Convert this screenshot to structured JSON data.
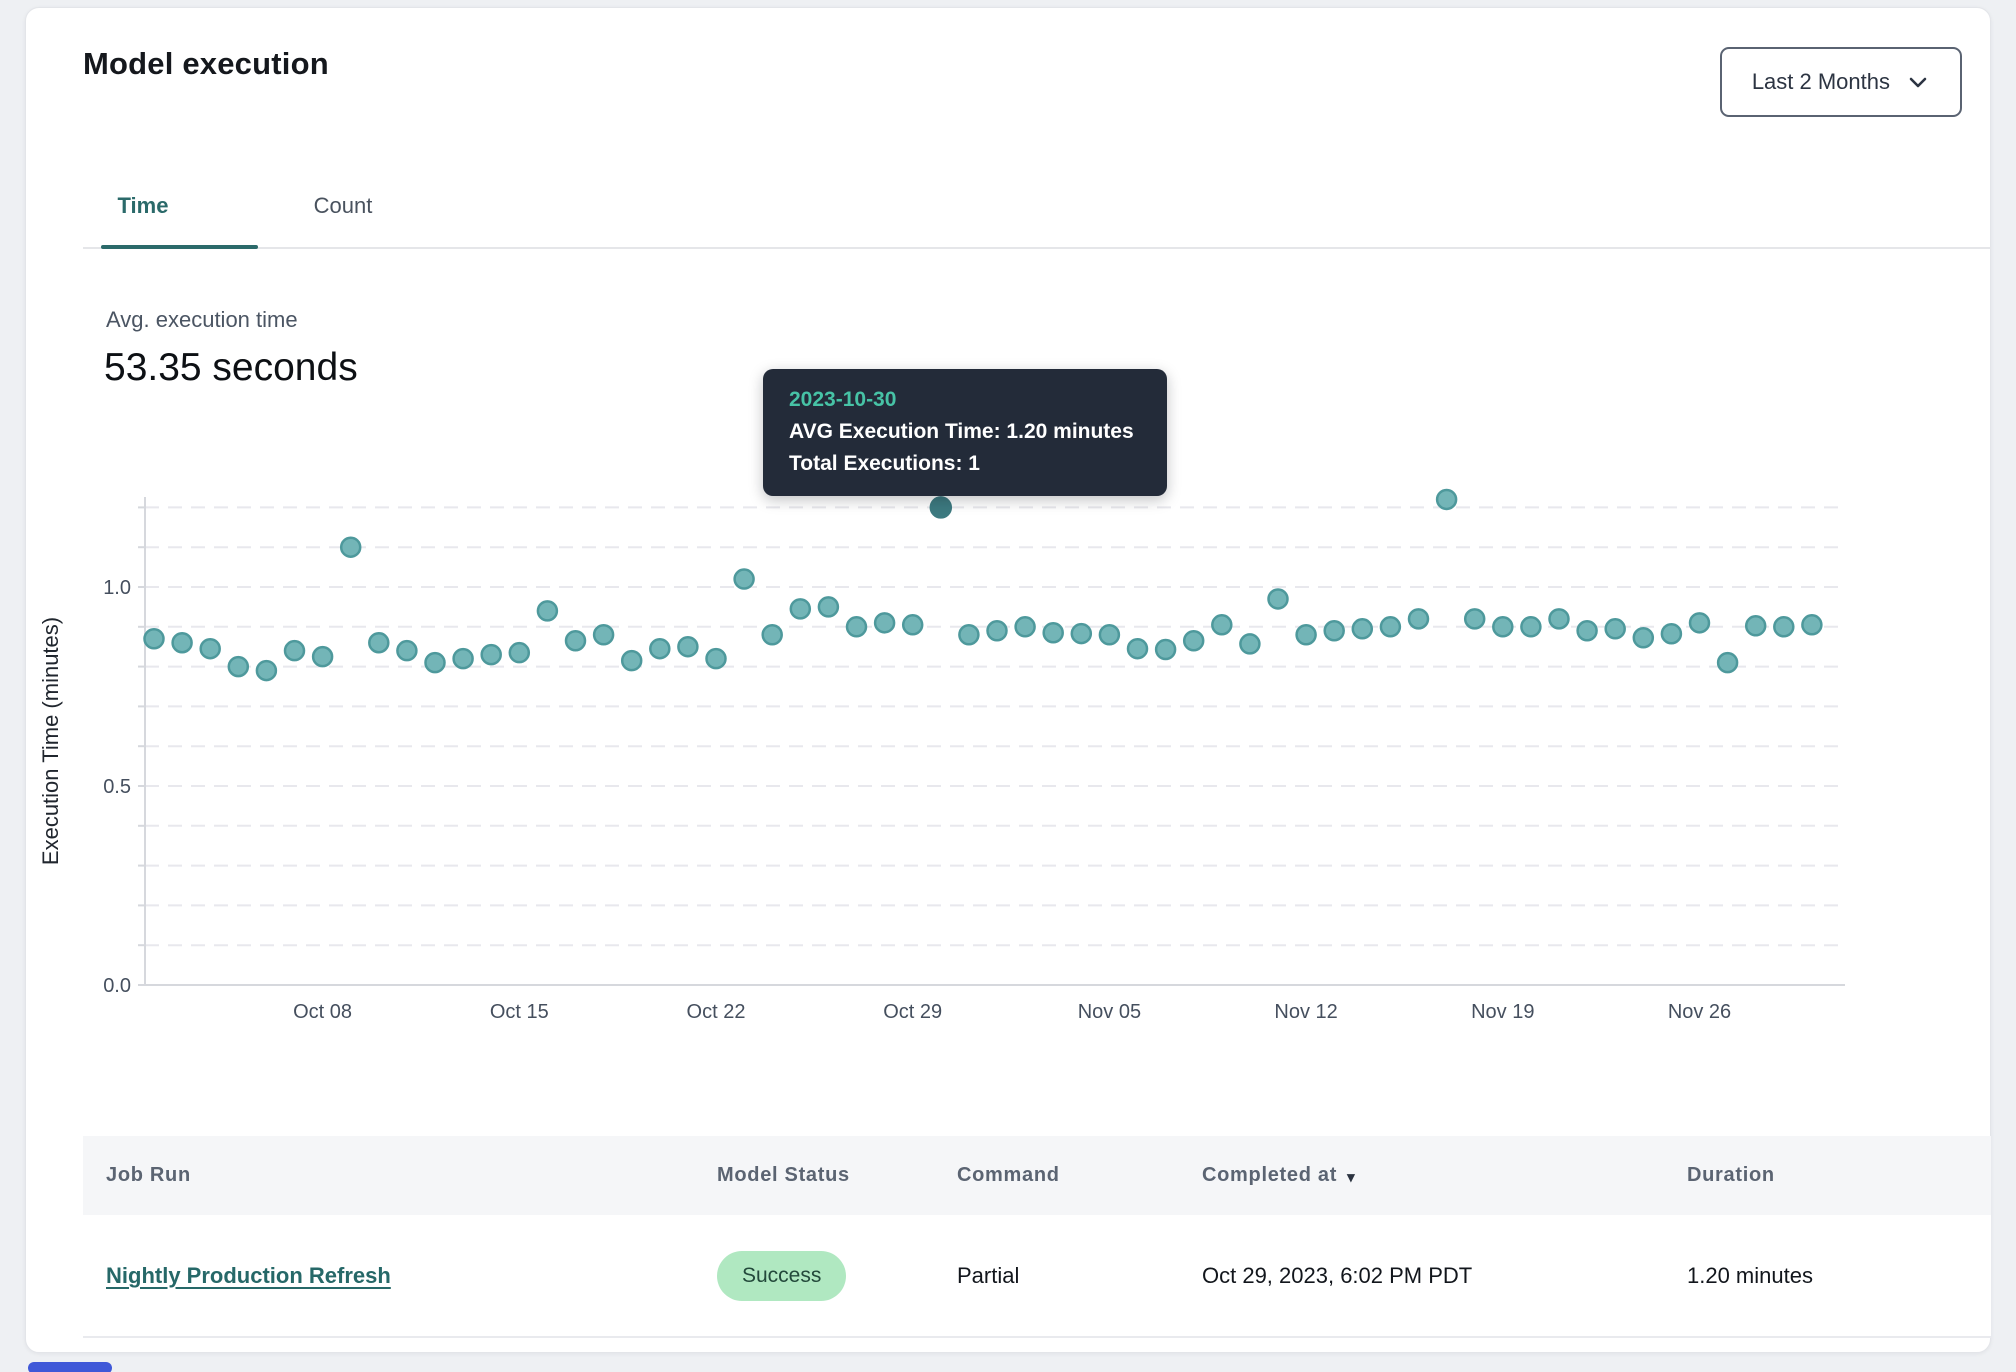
{
  "page": {
    "title": "Model execution"
  },
  "filter": {
    "label": "Last 2 Months"
  },
  "tabs": [
    {
      "label": "Time",
      "active": true
    },
    {
      "label": "Count",
      "active": false
    }
  ],
  "summary": {
    "label": "Avg. execution time",
    "value": "53.35 seconds"
  },
  "tooltip": {
    "date": "2023-10-30",
    "avg_line": "AVG Execution Time: 1.20 minutes",
    "total_line": "Total Executions: 1"
  },
  "chart_data": {
    "type": "scatter",
    "title": "",
    "xlabel": "",
    "ylabel": "Execution Time (minutes)",
    "ylim": [
      0,
      1.25
    ],
    "yticks": [
      0.0,
      0.5,
      1.0
    ],
    "grid": "horizontal-dashed-every-0.1",
    "legend": "none",
    "xticks": [
      {
        "label": "Oct 08",
        "index": 6
      },
      {
        "label": "Oct 15",
        "index": 13
      },
      {
        "label": "Oct 22",
        "index": 20
      },
      {
        "label": "Oct 29",
        "index": 27
      },
      {
        "label": "Nov 05",
        "index": 34
      },
      {
        "label": "Nov 12",
        "index": 41
      },
      {
        "label": "Nov 19",
        "index": 48
      },
      {
        "label": "Nov 26",
        "index": 55
      }
    ],
    "highlight": {
      "date": "2023-10-30",
      "value": 1.2,
      "total_executions": 1
    },
    "series": [
      {
        "name": "AVG Execution Time (minutes)",
        "points": [
          [
            "2023-10-02",
            0.87
          ],
          [
            "2023-10-03",
            0.86
          ],
          [
            "2023-10-04",
            0.845
          ],
          [
            "2023-10-05",
            0.8
          ],
          [
            "2023-10-06",
            0.79
          ],
          [
            "2023-10-07",
            0.84
          ],
          [
            "2023-10-08",
            0.825
          ],
          [
            "2023-10-09",
            1.1
          ],
          [
            "2023-10-10",
            0.86
          ],
          [
            "2023-10-11",
            0.84
          ],
          [
            "2023-10-12",
            0.81
          ],
          [
            "2023-10-13",
            0.82
          ],
          [
            "2023-10-14",
            0.83
          ],
          [
            "2023-10-15",
            0.835
          ],
          [
            "2023-10-16",
            0.94
          ],
          [
            "2023-10-17",
            0.865
          ],
          [
            "2023-10-18",
            0.88
          ],
          [
            "2023-10-19",
            0.815
          ],
          [
            "2023-10-20",
            0.845
          ],
          [
            "2023-10-21",
            0.85
          ],
          [
            "2023-10-22",
            0.82
          ],
          [
            "2023-10-23",
            1.02
          ],
          [
            "2023-10-24",
            0.88
          ],
          [
            "2023-10-25",
            0.945
          ],
          [
            "2023-10-26",
            0.95
          ],
          [
            "2023-10-27",
            0.9
          ],
          [
            "2023-10-28",
            0.91
          ],
          [
            "2023-10-29",
            0.905
          ],
          [
            "2023-10-30",
            1.2
          ],
          [
            "2023-10-31",
            0.88
          ],
          [
            "2023-11-01",
            0.89
          ],
          [
            "2023-11-02",
            0.9
          ],
          [
            "2023-11-03",
            0.885
          ],
          [
            "2023-11-04",
            0.883
          ],
          [
            "2023-11-05",
            0.88
          ],
          [
            "2023-11-06",
            0.845
          ],
          [
            "2023-11-07",
            0.843
          ],
          [
            "2023-11-08",
            0.865
          ],
          [
            "2023-11-09",
            0.905
          ],
          [
            "2023-11-10",
            0.857
          ],
          [
            "2023-11-11",
            0.97
          ],
          [
            "2023-11-12",
            0.88
          ],
          [
            "2023-11-13",
            0.89
          ],
          [
            "2023-11-14",
            0.895
          ],
          [
            "2023-11-15",
            0.9
          ],
          [
            "2023-11-16",
            0.92
          ],
          [
            "2023-11-17",
            1.22
          ],
          [
            "2023-11-18",
            0.92
          ],
          [
            "2023-11-19",
            0.9
          ],
          [
            "2023-11-20",
            0.9
          ],
          [
            "2023-11-21",
            0.92
          ],
          [
            "2023-11-22",
            0.89
          ],
          [
            "2023-11-23",
            0.895
          ],
          [
            "2023-11-24",
            0.8725
          ],
          [
            "2023-11-25",
            0.8825
          ],
          [
            "2023-11-26",
            0.91
          ],
          [
            "2023-11-27",
            0.81
          ],
          [
            "2023-11-28",
            0.9025
          ],
          [
            "2023-11-29",
            0.9
          ],
          [
            "2023-11-30",
            0.905
          ]
        ]
      }
    ]
  },
  "table": {
    "columns": [
      {
        "label": "Job Run",
        "sortable": false
      },
      {
        "label": "Model Status",
        "sortable": false
      },
      {
        "label": "Command",
        "sortable": false
      },
      {
        "label": "Completed at",
        "sortable": true,
        "sort": "desc"
      },
      {
        "label": "Duration",
        "sortable": false
      }
    ],
    "rows": [
      {
        "job_run": "Nightly Production Refresh",
        "model_status": "Success",
        "command": "Partial",
        "completed_at": "Oct 29, 2023, 6:02 PM PDT",
        "duration": "1.20 minutes"
      }
    ]
  },
  "icons": {
    "dropdown": "chevron-down-icon",
    "sort": "triangle-down-icon",
    "sort_glyph": "▾"
  },
  "colors": {
    "accent_teal": "#2b6a6a",
    "dot_fill": "#73b5b7",
    "dot_stroke": "#4e999c",
    "dot_highlight": "#3d7a80",
    "tooltip_bg": "#232b39",
    "tooltip_date": "#47c3a6",
    "badge_bg": "#b0e8c1",
    "badge_text": "#23493b",
    "link": "#266868",
    "grid_line": "#e8e8ed",
    "axis_line": "#d6d8dd",
    "tick_text": "#454f5e"
  }
}
